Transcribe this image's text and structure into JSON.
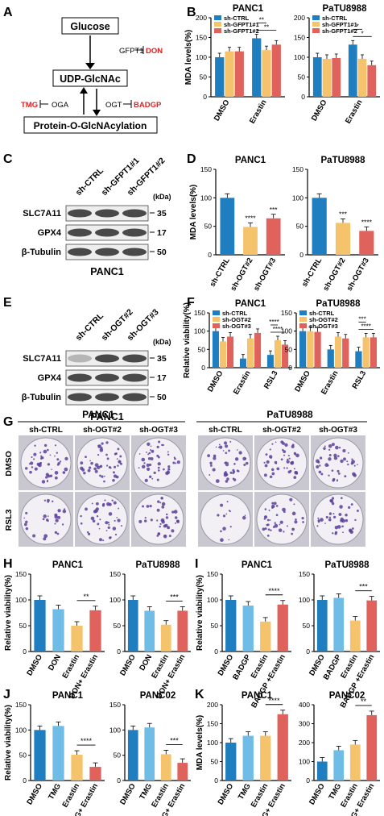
{
  "panel_letters": {
    "A": "A",
    "B": "B",
    "C": "C",
    "D": "D",
    "E": "E",
    "F": "F",
    "G": "G",
    "H": "H",
    "I": "I",
    "J": "J",
    "K": "K"
  },
  "pathway": {
    "glucose": "Glucose",
    "udp": "UDP-GlcNAc",
    "protein": "Protein-O-GlcNAcylation",
    "gfpt1": "GFPT1",
    "don": "DON",
    "oga": "OGA",
    "ogt": "OGT",
    "tmg": "TMG",
    "badgp": "BADGP"
  },
  "colors": {
    "blue": "#1f7ec0",
    "yellow": "#f5c36b",
    "red": "#e0625c",
    "lightblue": "#6fbde6",
    "darkred": "#c0392b",
    "pathway_red": "#e02020",
    "plate_purple": "#5b3f9a"
  },
  "blot_C": {
    "lanes": [
      "sh-CTRL",
      "sh-GFPT1#1",
      "sh-GFPT1#2"
    ],
    "kda": "(kDa)",
    "rows": [
      {
        "name": "SLC7A11",
        "kda": "35"
      },
      {
        "name": "GPX4",
        "kda": "17"
      },
      {
        "name": "β-Tubulin",
        "kda": "50"
      }
    ],
    "cell": "PANC1"
  },
  "blot_E": {
    "lanes": [
      "sh-CTRL",
      "sh-OGT#2",
      "sh-OGT#3"
    ],
    "kda": "(kDa)",
    "rows": [
      {
        "name": "SLC7A11",
        "kda": "35"
      },
      {
        "name": "GPX4",
        "kda": "17"
      },
      {
        "name": "β-Tubulin",
        "kda": "50"
      }
    ],
    "cell": "PANC1"
  },
  "panel_G": {
    "left_title": "PANC1",
    "right_title": "PaTU8988",
    "cols": [
      "sh-CTRL",
      "sh-OGT#2",
      "sh-OGT#3"
    ],
    "rows": [
      "DMSO",
      "RSL3"
    ]
  },
  "chart_data": [
    {
      "id": "B1",
      "type": "bar",
      "title": "PANC1",
      "ylabel": "MDA levels(%)",
      "ylim": [
        0,
        200
      ],
      "yticks": [
        0,
        50,
        100,
        150,
        200
      ],
      "categories": [
        "DMSO",
        "Erastin"
      ],
      "legend": [
        "sh-CTRL",
        "sh-GFPT1#1",
        "sh-GFPT1#2"
      ],
      "series": [
        {
          "name": "sh-CTRL",
          "values": [
            100,
            148
          ]
        },
        {
          "name": "sh-GFPT1#1",
          "values": [
            115,
            118
          ]
        },
        {
          "name": "sh-GFPT1#2",
          "values": [
            115,
            132
          ]
        }
      ],
      "sig": [
        "**",
        "**"
      ]
    },
    {
      "id": "B2",
      "type": "bar",
      "title": "PaTU8988",
      "ylim": [
        0,
        200
      ],
      "yticks": [
        0,
        50,
        100,
        150,
        200
      ],
      "categories": [
        "DMSO",
        "Erastin"
      ],
      "legend": [
        "sh-CTRL",
        "sh-GFPT1#1",
        "sh-GFPT1#2"
      ],
      "series": [
        {
          "name": "sh-CTRL",
          "values": [
            100,
            132
          ]
        },
        {
          "name": "sh-GFPT1#1",
          "values": [
            96,
            96
          ]
        },
        {
          "name": "sh-GFPT1#2",
          "values": [
            98,
            80
          ]
        }
      ],
      "sig": [
        "*",
        "*"
      ]
    },
    {
      "id": "D1",
      "type": "bar",
      "title": "PANC1",
      "ylabel": "MDA levels(%)",
      "ylim": [
        0,
        150
      ],
      "yticks": [
        0,
        50,
        100,
        150
      ],
      "categories": [
        "sh-CTRL",
        "sh-OGT#2",
        "sh-OGT#3"
      ],
      "values": [
        100,
        49,
        64
      ],
      "sig": [
        "",
        "****",
        "***"
      ]
    },
    {
      "id": "D2",
      "type": "bar",
      "title": "PaTU8988",
      "ylim": [
        0,
        150
      ],
      "yticks": [
        0,
        50,
        100,
        150
      ],
      "categories": [
        "sh-CTRL",
        "sh-OGT#2",
        "sh-OGT#3"
      ],
      "values": [
        100,
        56,
        42
      ],
      "sig": [
        "",
        "***",
        "****"
      ]
    },
    {
      "id": "F1",
      "type": "bar",
      "title": "PANC1",
      "ylabel": "Relative viability(%)",
      "ylim": [
        0,
        150
      ],
      "yticks": [
        0,
        50,
        100,
        150
      ],
      "categories": [
        "DMSO",
        "Erastin",
        "RSL3"
      ],
      "legend": [
        "sh-CTRL",
        "sh-OGT#2",
        "sh-OGT#3"
      ],
      "series": [
        {
          "name": "sh-CTRL",
          "values": [
            100,
            25,
            35
          ]
        },
        {
          "name": "sh-OGT#2",
          "values": [
            72,
            80,
            75
          ]
        },
        {
          "name": "sh-OGT#3",
          "values": [
            85,
            95,
            63
          ]
        }
      ],
      "sig": [
        "****",
        "****"
      ]
    },
    {
      "id": "F2",
      "type": "bar",
      "title": "PaTU8988",
      "ylim": [
        0,
        150
      ],
      "yticks": [
        0,
        50,
        100,
        150
      ],
      "categories": [
        "DMSO",
        "Erastin",
        "RSL3"
      ],
      "legend": [
        "sh-CTRL",
        "sh-OGT#2",
        "sh-OGT#3"
      ],
      "series": [
        {
          "name": "sh-CTRL",
          "values": [
            100,
            50,
            45
          ]
        },
        {
          "name": "sh-OGT#2",
          "values": [
            100,
            85,
            83
          ]
        },
        {
          "name": "sh-OGT#3",
          "values": [
            98,
            80,
            83
          ]
        }
      ],
      "sig": [
        "***",
        "****"
      ]
    },
    {
      "id": "H1",
      "type": "bar",
      "title": "PANC1",
      "ylabel": "Relative viability(%)",
      "ylim": [
        0,
        150
      ],
      "yticks": [
        0,
        50,
        100,
        150
      ],
      "categories": [
        "DMSO",
        "DON",
        "Erastin",
        "DON+ Erastin"
      ],
      "values": [
        100,
        82,
        50,
        80
      ],
      "sig": "**"
    },
    {
      "id": "H2",
      "type": "bar",
      "title": "PaTU8988",
      "ylim": [
        0,
        150
      ],
      "yticks": [
        0,
        50,
        100,
        150
      ],
      "categories": [
        "DMSO",
        "DON",
        "Erastin",
        "DON+ Erastin"
      ],
      "values": [
        100,
        79,
        52,
        79
      ],
      "sig": "***"
    },
    {
      "id": "I1",
      "type": "bar",
      "title": "PANC1",
      "ylabel": "Relative viability(%)",
      "ylim": [
        0,
        150
      ],
      "yticks": [
        0,
        50,
        100,
        150
      ],
      "categories": [
        "DMSO",
        "BADGP",
        "Erastin",
        "BADGP +Erastin"
      ],
      "values": [
        100,
        89,
        58,
        91
      ],
      "sig": "****"
    },
    {
      "id": "I2",
      "type": "bar",
      "title": "PaTU8988",
      "ylim": [
        0,
        150
      ],
      "yticks": [
        0,
        50,
        100,
        150
      ],
      "categories": [
        "DMSO",
        "BADGP",
        "Erastin",
        "BADGP +Erastin"
      ],
      "values": [
        100,
        104,
        60,
        99
      ],
      "sig": "***"
    },
    {
      "id": "J1",
      "type": "bar",
      "title": "PANC1",
      "ylabel": "Relative viability(%)",
      "ylim": [
        0,
        150
      ],
      "yticks": [
        0,
        50,
        100,
        150
      ],
      "categories": [
        "DMSO",
        "TMG",
        "Erastin",
        "TMG+ Erastin"
      ],
      "values": [
        100,
        108,
        51,
        27
      ],
      "sig": "****"
    },
    {
      "id": "J2",
      "type": "bar",
      "title": "PANC02",
      "ylim": [
        0,
        150
      ],
      "yticks": [
        0,
        50,
        100,
        150
      ],
      "categories": [
        "DMSO",
        "TMG",
        "Erastin",
        "TMG+ Erastin"
      ],
      "values": [
        100,
        105,
        52,
        35
      ],
      "sig": "***"
    },
    {
      "id": "K1",
      "type": "bar",
      "title": "PANC1",
      "ylabel": "MDA levels(%)",
      "ylim": [
        0,
        200
      ],
      "yticks": [
        0,
        50,
        100,
        150,
        200
      ],
      "categories": [
        "DMSO",
        "TMG",
        "Erastin",
        "TMG+ Erastin"
      ],
      "values": [
        100,
        118,
        118,
        175
      ],
      "sig": "****"
    },
    {
      "id": "K2",
      "type": "bar",
      "title": "PANC02",
      "ylim": [
        0,
        400
      ],
      "yticks": [
        0,
        100,
        200,
        300,
        400
      ],
      "categories": [
        "DMSO",
        "TMG",
        "Erastin",
        "TMG+ Erastin"
      ],
      "values": [
        100,
        160,
        190,
        345
      ],
      "sig": "**"
    }
  ]
}
